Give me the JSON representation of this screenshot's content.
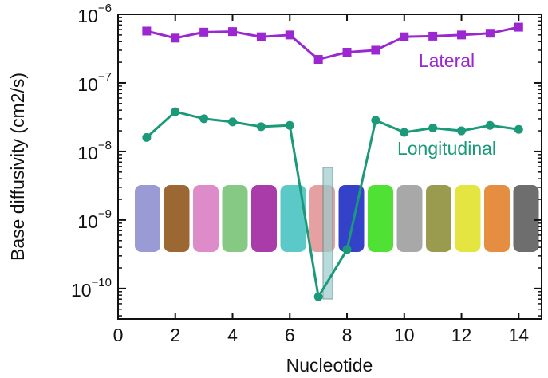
{
  "chart_data": {
    "type": "line",
    "x_label": "Nucleotide",
    "y_label": "Base diffusivity (cm2/s)",
    "log_y": true,
    "xlim": [
      0,
      14.8
    ],
    "ylim": [
      3.6e-11,
      1e-06
    ],
    "xticks": [
      0,
      2,
      4,
      6,
      8,
      10,
      12,
      14
    ],
    "yticks": [
      {
        "value": 1e-10,
        "label": "10−10"
      },
      {
        "value": 1e-09,
        "label": "10−9"
      },
      {
        "value": 1e-08,
        "label": "10−8"
      },
      {
        "value": 1e-07,
        "label": "10−7"
      },
      {
        "value": 1e-06,
        "label": "10−6"
      }
    ],
    "x": [
      1,
      2,
      3,
      4,
      5,
      6,
      7,
      8,
      9,
      10,
      11,
      12,
      13,
      14
    ],
    "series": [
      {
        "name": "Lateral",
        "color": "#9b27d0",
        "marker": "square",
        "values": [
          5.7e-07,
          4.5e-07,
          5.5e-07,
          5.6e-07,
          4.7e-07,
          5e-07,
          2.2e-07,
          2.8e-07,
          3e-07,
          4.7e-07,
          4.8e-07,
          5e-07,
          5.3e-07,
          6.5e-07
        ]
      },
      {
        "name": "Longitudinal",
        "color": "#1a9a78",
        "marker": "circle",
        "values": [
          1.6e-08,
          3.8e-08,
          3e-08,
          2.7e-08,
          2.3e-08,
          2.4e-08,
          7.6e-11,
          3.7e-10,
          2.85e-08,
          1.9e-08,
          2.2e-08,
          2e-08,
          2.4e-08,
          2.1e-08
        ]
      }
    ]
  }
}
